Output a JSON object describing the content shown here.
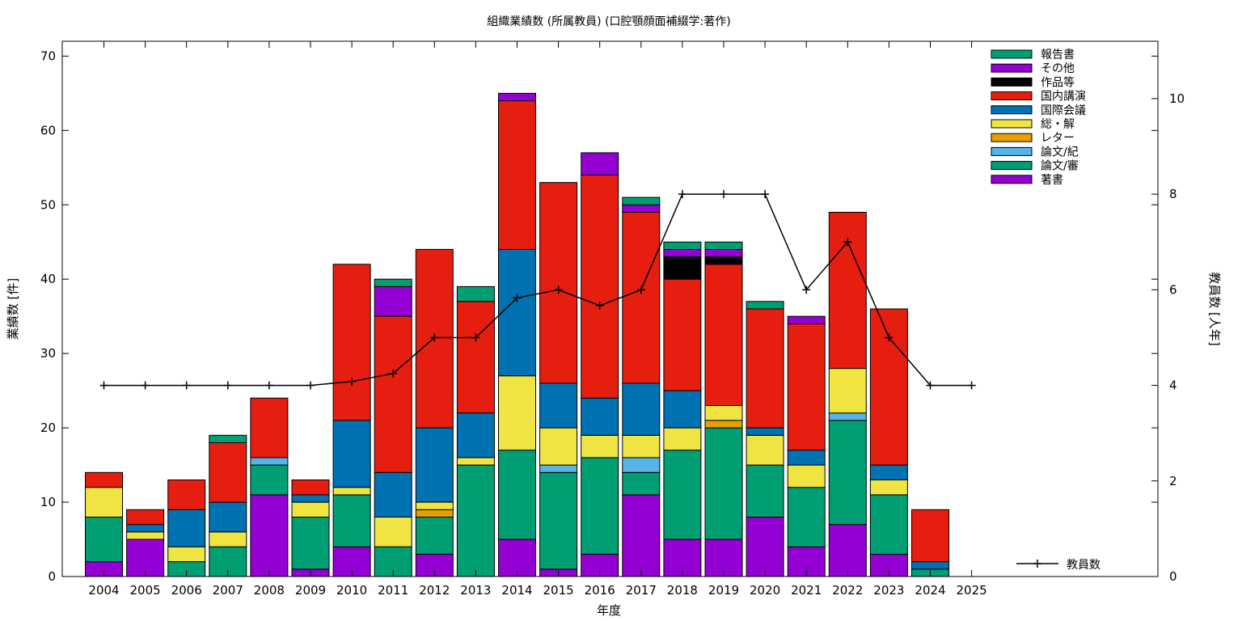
{
  "chart_data": {
    "type": "bar",
    "stacked": true,
    "title": "組織業績数 (所属教員) (口腔顎顔面補綴学:著作)",
    "xlabel": "年度",
    "ylabel": "業績数 [件]",
    "y2label": "教員数 [人年]",
    "ylim": [
      0,
      72
    ],
    "y2lim": [
      0,
      11.2
    ],
    "yticks": [
      0,
      10,
      20,
      30,
      40,
      50,
      60,
      70
    ],
    "y2ticks": [
      0,
      2,
      4,
      6,
      8,
      10
    ],
    "legend_position": "top-right",
    "categories": [
      "2004",
      "2005",
      "2006",
      "2007",
      "2008",
      "2009",
      "2010",
      "2011",
      "2012",
      "2013",
      "2014",
      "2015",
      "2016",
      "2017",
      "2018",
      "2019",
      "2020",
      "2021",
      "2022",
      "2023",
      "2024",
      "2025"
    ],
    "series": [
      {
        "name": "著書",
        "color": "#9400d3",
        "values": [
          2,
          5,
          0,
          0,
          11,
          1,
          4,
          0,
          3,
          0,
          5,
          1,
          3,
          11,
          5,
          5,
          8,
          4,
          7,
          3,
          0,
          0
        ]
      },
      {
        "name": "論文/審",
        "color": "#009e73",
        "values": [
          6,
          0,
          2,
          4,
          4,
          7,
          7,
          4,
          5,
          15,
          12,
          13,
          13,
          3,
          12,
          15,
          7,
          8,
          14,
          8,
          1,
          0
        ]
      },
      {
        "name": "論文/紀",
        "color": "#56b4e9",
        "values": [
          0,
          0,
          0,
          0,
          1,
          0,
          0,
          0,
          0,
          0,
          0,
          1,
          0,
          2,
          0,
          0,
          0,
          0,
          1,
          0,
          0,
          0
        ]
      },
      {
        "name": "レター",
        "color": "#e69f00",
        "values": [
          0,
          0,
          0,
          0,
          0,
          0,
          0,
          0,
          1,
          0,
          0,
          0,
          0,
          0,
          0,
          1,
          0,
          0,
          0,
          0,
          0,
          0
        ]
      },
      {
        "name": "総・解",
        "color": "#f0e442",
        "values": [
          4,
          1,
          2,
          2,
          0,
          2,
          1,
          4,
          1,
          1,
          10,
          5,
          3,
          3,
          3,
          2,
          4,
          3,
          6,
          2,
          0,
          0
        ]
      },
      {
        "name": "国際会議",
        "color": "#0072b2",
        "values": [
          0,
          1,
          5,
          4,
          0,
          1,
          9,
          6,
          10,
          6,
          17,
          6,
          5,
          7,
          5,
          0,
          1,
          2,
          0,
          2,
          1,
          0
        ]
      },
      {
        "name": "国内講演",
        "color": "#e51e10",
        "values": [
          2,
          2,
          4,
          8,
          8,
          2,
          21,
          21,
          24,
          15,
          20,
          27,
          30,
          23,
          15,
          19,
          16,
          17,
          21,
          21,
          7,
          0
        ]
      },
      {
        "name": "作品等",
        "color": "#000000",
        "values": [
          0,
          0,
          0,
          0,
          0,
          0,
          0,
          0,
          0,
          0,
          0,
          0,
          0,
          0,
          3,
          1,
          0,
          0,
          0,
          0,
          0,
          0
        ]
      },
      {
        "name": "その他",
        "color": "#9400d3",
        "values": [
          0,
          0,
          0,
          0,
          0,
          0,
          0,
          4,
          0,
          0,
          1,
          0,
          3,
          1,
          1,
          1,
          0,
          1,
          0,
          0,
          0,
          0
        ]
      },
      {
        "name": "報告書",
        "color": "#009e73",
        "values": [
          0,
          0,
          0,
          1,
          0,
          0,
          0,
          1,
          0,
          2,
          0,
          0,
          0,
          1,
          1,
          1,
          1,
          0,
          0,
          0,
          0,
          0
        ]
      }
    ],
    "line_series": {
      "name": "教員数",
      "axis": "y2",
      "color": "#000000",
      "values": [
        4,
        4,
        4,
        4,
        4,
        4,
        4.08,
        4.25,
        5,
        5,
        5.83,
        6,
        5.67,
        6,
        8,
        8,
        8,
        6,
        7,
        5,
        4,
        4
      ]
    }
  }
}
